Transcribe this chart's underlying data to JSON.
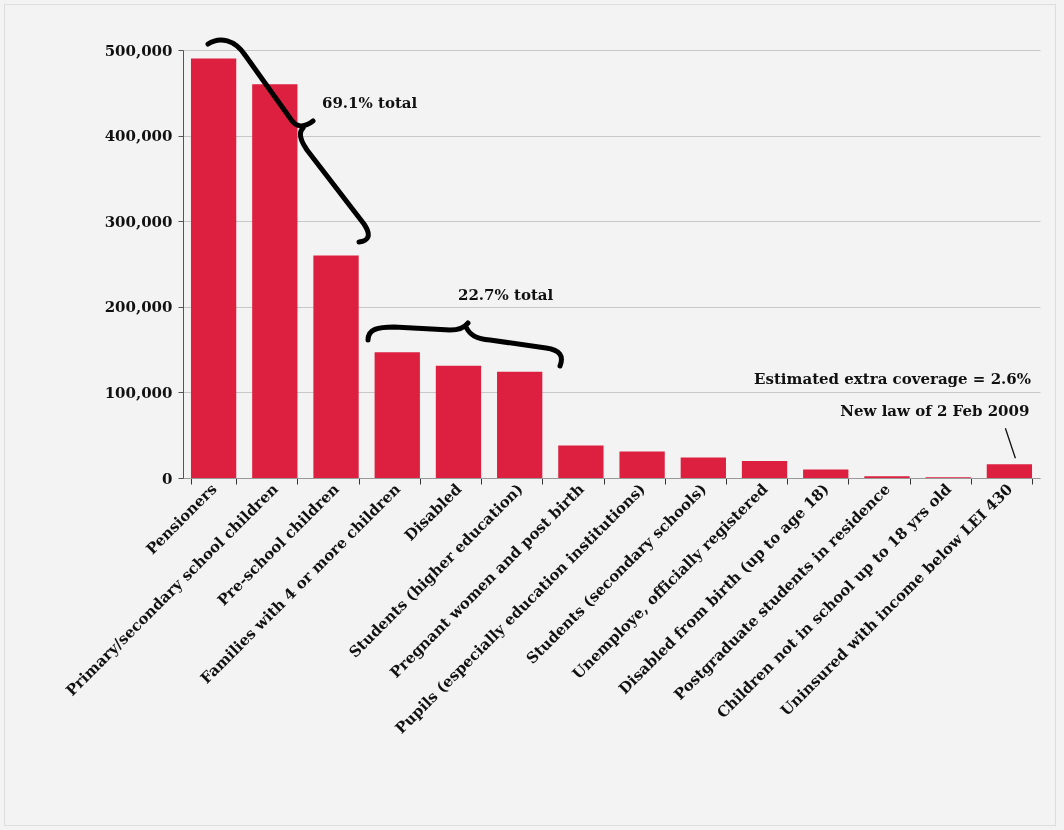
{
  "chart_data": {
    "type": "bar",
    "categories": [
      "Pensioners",
      "Primary/secondary school children",
      "Pre-school children",
      "Families with 4 or more children",
      "Disabled",
      "Students (higher education)",
      "Pregnant women and post birth",
      "Pupils (especially education institutions)",
      "Students (secondary schools)",
      "Unemploye, officially registered",
      "Disabled from birth (up to age 18)",
      "Postgraduate students in residence",
      "Children not in school up to 18 yrs old",
      "Uninsured with income below LEI 430"
    ],
    "values": [
      490000,
      460000,
      260000,
      147000,
      131000,
      124000,
      38000,
      31000,
      24000,
      20000,
      10000,
      2000,
      1000,
      16000
    ],
    "color": "#dd2040",
    "ylim": [
      0,
      500000
    ],
    "yticks": [
      0,
      {
        "value": 100000,
        "label": "100,000"
      },
      {
        "value": 200000,
        "label": "200,000"
      },
      {
        "value": 300000,
        "label": "300,000"
      },
      {
        "value": 400000,
        "label": "400,000"
      },
      {
        "value": 500000,
        "label": "500,000"
      }
    ],
    "grid": "y",
    "annotations": [
      "69.1% total",
      "22.7% total",
      "Estimated extra coverage = 2.6%",
      {
        "text": "New law of 2 Feb 2009",
        "x": "Uninsured with income below LEI 430",
        "y": 16000
      }
    ]
  }
}
